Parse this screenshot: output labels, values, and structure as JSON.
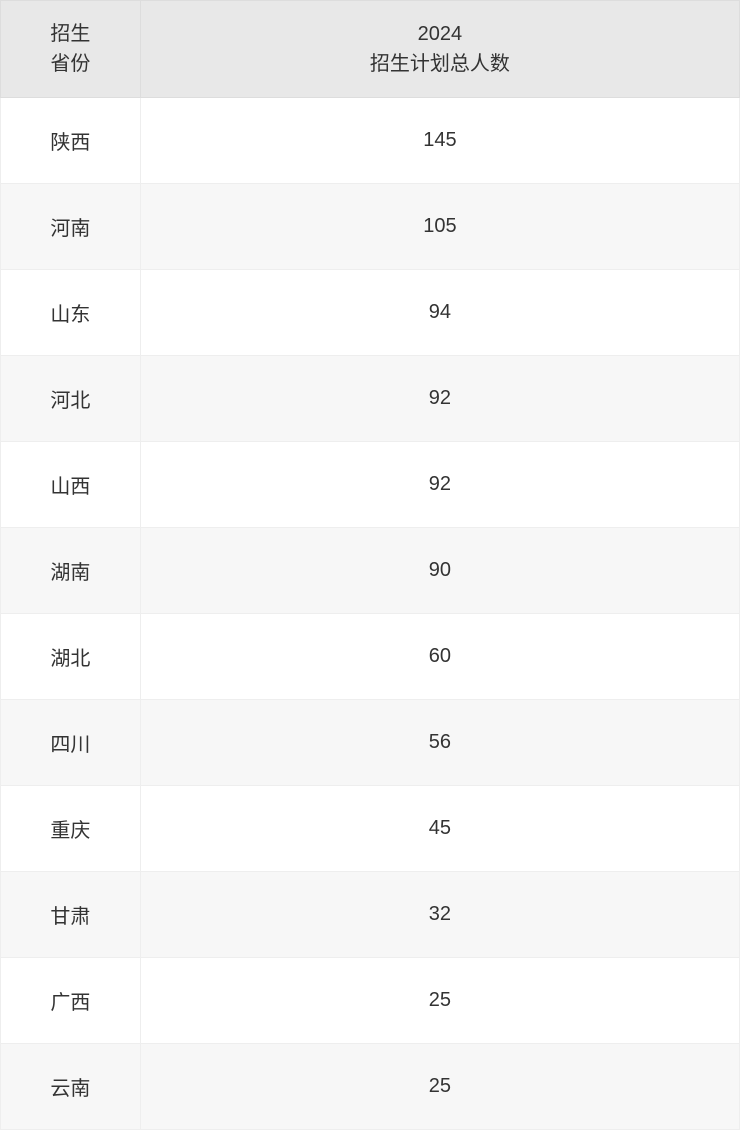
{
  "table": {
    "header": {
      "province_line1": "招生",
      "province_line2": "省份",
      "count_line1": "2024",
      "count_line2": "招生计划总人数"
    },
    "rows": [
      {
        "province": "陕西",
        "count": "145"
      },
      {
        "province": "河南",
        "count": "105"
      },
      {
        "province": "山东",
        "count": "94"
      },
      {
        "province": "河北",
        "count": "92"
      },
      {
        "province": "山西",
        "count": "92"
      },
      {
        "province": "湖南",
        "count": "90"
      },
      {
        "province": "湖北",
        "count": "60"
      },
      {
        "province": "四川",
        "count": "56"
      },
      {
        "province": "重庆",
        "count": "45"
      },
      {
        "province": "甘肃",
        "count": "32"
      },
      {
        "province": "广西",
        "count": "25"
      },
      {
        "province": "云南",
        "count": "25"
      }
    ],
    "colors": {
      "header_bg": "#e8e8e8",
      "row_odd_bg": "#ffffff",
      "row_even_bg": "#f7f7f7",
      "border": "#eeeeee",
      "header_border": "#dddddd",
      "text": "#333333"
    },
    "column_widths": {
      "province": 140,
      "count": 600
    },
    "font_size": 20
  }
}
